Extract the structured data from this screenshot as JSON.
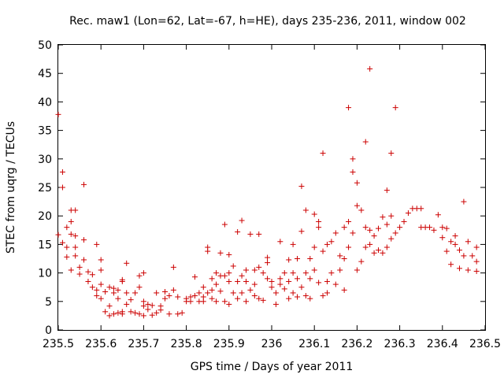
{
  "chart_data": {
    "type": "scatter",
    "title": "Rec. maw1 (Lon=62, Lat=-67, h=HE), days 235-236, 2011, window 002",
    "xlabel": "GPS time / Days of year 2011",
    "ylabel": "STEC from uqrg / TECUs",
    "xlim": [
      235.5,
      236.5
    ],
    "ylim": [
      0,
      50
    ],
    "xticks": [
      "235.5",
      "235.6",
      "235.7",
      "235.8",
      "235.9",
      "236",
      "236.1",
      "236.2",
      "236.3",
      "236.4",
      "236.5"
    ],
    "yticks": [
      "0",
      "5",
      "10",
      "15",
      "20",
      "25",
      "30",
      "35",
      "40",
      "45",
      "50"
    ],
    "grid": false,
    "marker": "plus",
    "color": "#cc0000",
    "points": [
      [
        235.5,
        37.8
      ],
      [
        235.5,
        16.7
      ],
      [
        235.51,
        15.3
      ],
      [
        235.51,
        27.7
      ],
      [
        235.51,
        25
      ],
      [
        235.52,
        18
      ],
      [
        235.52,
        14.5
      ],
      [
        235.52,
        12.8
      ],
      [
        235.53,
        19
      ],
      [
        235.53,
        21
      ],
      [
        235.53,
        16.8
      ],
      [
        235.53,
        10.5
      ],
      [
        235.54,
        21
      ],
      [
        235.54,
        16.5
      ],
      [
        235.54,
        14.5
      ],
      [
        235.54,
        13
      ],
      [
        235.55,
        9.8
      ],
      [
        235.55,
        11
      ],
      [
        235.56,
        25.5
      ],
      [
        235.56,
        15.8
      ],
      [
        235.56,
        12.3
      ],
      [
        235.57,
        10.2
      ],
      [
        235.57,
        8.5
      ],
      [
        235.58,
        9.7
      ],
      [
        235.58,
        7.5
      ],
      [
        235.59,
        7
      ],
      [
        235.59,
        15
      ],
      [
        235.59,
        6
      ],
      [
        235.6,
        8
      ],
      [
        235.6,
        5.5
      ],
      [
        235.6,
        12.3
      ],
      [
        235.6,
        10.5
      ],
      [
        235.61,
        3.2
      ],
      [
        235.61,
        6.7
      ],
      [
        235.62,
        7.5
      ],
      [
        235.62,
        4.2
      ],
      [
        235.62,
        2.5
      ],
      [
        235.63,
        7.3
      ],
      [
        235.63,
        6.5
      ],
      [
        235.63,
        2.8
      ],
      [
        235.64,
        7
      ],
      [
        235.64,
        3
      ],
      [
        235.64,
        5.5
      ],
      [
        235.65,
        8.8
      ],
      [
        235.65,
        8.5
      ],
      [
        235.65,
        3.2
      ],
      [
        235.65,
        2.8
      ],
      [
        235.66,
        6.5
      ],
      [
        235.66,
        4.5
      ],
      [
        235.66,
        11.7
      ],
      [
        235.67,
        3.2
      ],
      [
        235.67,
        5.3
      ],
      [
        235.68,
        6.5
      ],
      [
        235.68,
        3
      ],
      [
        235.69,
        9.5
      ],
      [
        235.69,
        7.5
      ],
      [
        235.69,
        2.8
      ],
      [
        235.7,
        10
      ],
      [
        235.7,
        5
      ],
      [
        235.7,
        4.2
      ],
      [
        235.7,
        2.5
      ],
      [
        235.71,
        4.5
      ],
      [
        235.71,
        3.6
      ],
      [
        235.72,
        4.3
      ],
      [
        235.72,
        2.6
      ],
      [
        235.73,
        6.5
      ],
      [
        235.73,
        3
      ],
      [
        235.74,
        3.5
      ],
      [
        235.74,
        4.2
      ],
      [
        235.75,
        5.5
      ],
      [
        235.75,
        6.7
      ],
      [
        235.76,
        6
      ],
      [
        235.76,
        2.8
      ],
      [
        235.77,
        11
      ],
      [
        235.77,
        7
      ],
      [
        235.78,
        5.8
      ],
      [
        235.78,
        2.8
      ],
      [
        235.79,
        3
      ],
      [
        235.8,
        5.5
      ],
      [
        235.8,
        5
      ],
      [
        235.81,
        5.8
      ],
      [
        235.81,
        5
      ],
      [
        235.82,
        9.3
      ],
      [
        235.82,
        6
      ],
      [
        235.83,
        5
      ],
      [
        235.83,
        6.5
      ],
      [
        235.84,
        7.5
      ],
      [
        235.84,
        5.8
      ],
      [
        235.84,
        5
      ],
      [
        235.85,
        14.5
      ],
      [
        235.85,
        13.8
      ],
      [
        235.85,
        6.5
      ],
      [
        235.86,
        5.5
      ],
      [
        235.86,
        9
      ],
      [
        235.86,
        7
      ],
      [
        235.87,
        10
      ],
      [
        235.87,
        5
      ],
      [
        235.87,
        8
      ],
      [
        235.88,
        13.5
      ],
      [
        235.88,
        9.5
      ],
      [
        235.88,
        6.8
      ],
      [
        235.89,
        18.5
      ],
      [
        235.89,
        9.5
      ],
      [
        235.89,
        5
      ],
      [
        235.9,
        13.2
      ],
      [
        235.9,
        10
      ],
      [
        235.9,
        8.5
      ],
      [
        235.9,
        4.5
      ],
      [
        235.91,
        11.2
      ],
      [
        235.91,
        6.5
      ],
      [
        235.92,
        17.2
      ],
      [
        235.92,
        8.5
      ],
      [
        235.92,
        5.5
      ],
      [
        235.93,
        9.5
      ],
      [
        235.93,
        6.5
      ],
      [
        235.93,
        19.2
      ],
      [
        235.94,
        10.5
      ],
      [
        235.94,
        8.5
      ],
      [
        235.94,
        5
      ],
      [
        235.95,
        16.8
      ],
      [
        235.95,
        7
      ],
      [
        235.96,
        10.5
      ],
      [
        235.96,
        8
      ],
      [
        235.96,
        6
      ],
      [
        235.97,
        16.8
      ],
      [
        235.97,
        11
      ],
      [
        235.97,
        5.5
      ],
      [
        235.98,
        10
      ],
      [
        235.98,
        5.2
      ],
      [
        235.99,
        12.7
      ],
      [
        235.99,
        11.8
      ],
      [
        235.99,
        9
      ],
      [
        236.0,
        8.5
      ],
      [
        236.0,
        7.5
      ],
      [
        236.01,
        6.5
      ],
      [
        236.01,
        4.5
      ],
      [
        236.02,
        9
      ],
      [
        236.02,
        8
      ],
      [
        236.02,
        15.5
      ],
      [
        236.03,
        10
      ],
      [
        236.03,
        7.2
      ],
      [
        236.04,
        12.3
      ],
      [
        236.04,
        8.5
      ],
      [
        236.04,
        5.5
      ],
      [
        236.05,
        10
      ],
      [
        236.05,
        6.5
      ],
      [
        236.05,
        15
      ],
      [
        236.06,
        12.5
      ],
      [
        236.06,
        9
      ],
      [
        236.06,
        5.8
      ],
      [
        236.07,
        25.2
      ],
      [
        236.07,
        17.3
      ],
      [
        236.07,
        7.5
      ],
      [
        236.08,
        10
      ],
      [
        236.08,
        6
      ],
      [
        236.08,
        21
      ],
      [
        236.09,
        12.5
      ],
      [
        236.09,
        9
      ],
      [
        236.09,
        5.5
      ],
      [
        236.1,
        20.3
      ],
      [
        236.1,
        14.5
      ],
      [
        236.1,
        10.5
      ],
      [
        236.11,
        19
      ],
      [
        236.11,
        18
      ],
      [
        236.11,
        8.3
      ],
      [
        236.12,
        13.8
      ],
      [
        236.12,
        6
      ],
      [
        236.12,
        31
      ],
      [
        236.13,
        15
      ],
      [
        236.13,
        8.5
      ],
      [
        236.13,
        6.5
      ],
      [
        236.14,
        15.5
      ],
      [
        236.14,
        10
      ],
      [
        236.15,
        17
      ],
      [
        236.15,
        8
      ],
      [
        236.16,
        13
      ],
      [
        236.16,
        10.5
      ],
      [
        236.17,
        18
      ],
      [
        236.17,
        12.5
      ],
      [
        236.17,
        7
      ],
      [
        236.18,
        39
      ],
      [
        236.18,
        19
      ],
      [
        236.18,
        14.5
      ],
      [
        236.19,
        30
      ],
      [
        236.19,
        27.7
      ],
      [
        236.19,
        17
      ],
      [
        236.2,
        25.8
      ],
      [
        236.2,
        21.8
      ],
      [
        236.2,
        10.5
      ],
      [
        236.21,
        21
      ],
      [
        236.21,
        12
      ],
      [
        236.22,
        33
      ],
      [
        236.22,
        18
      ],
      [
        236.22,
        14.5
      ],
      [
        236.23,
        45.8
      ],
      [
        236.23,
        17.5
      ],
      [
        236.23,
        15
      ],
      [
        236.24,
        16.5
      ],
      [
        236.24,
        13.5
      ],
      [
        236.25,
        17.8
      ],
      [
        236.25,
        14
      ],
      [
        236.26,
        19.8
      ],
      [
        236.26,
        13.5
      ],
      [
        236.27,
        24.5
      ],
      [
        236.27,
        18.5
      ],
      [
        236.27,
        14.5
      ],
      [
        236.28,
        31
      ],
      [
        236.28,
        20
      ],
      [
        236.28,
        16
      ],
      [
        236.29,
        39
      ],
      [
        236.29,
        17
      ],
      [
        236.3,
        18
      ],
      [
        236.31,
        19
      ],
      [
        236.32,
        20.5
      ],
      [
        236.33,
        21.3
      ],
      [
        236.34,
        21.3
      ],
      [
        236.35,
        18
      ],
      [
        236.35,
        21.3
      ],
      [
        236.36,
        18
      ],
      [
        236.37,
        18
      ],
      [
        236.38,
        17.5
      ],
      [
        236.39,
        20.2
      ],
      [
        236.4,
        18
      ],
      [
        236.4,
        16.2
      ],
      [
        236.41,
        17.8
      ],
      [
        236.41,
        13.8
      ],
      [
        236.42,
        15.5
      ],
      [
        236.42,
        11.5
      ],
      [
        236.43,
        16.5
      ],
      [
        236.43,
        15
      ],
      [
        236.44,
        14
      ],
      [
        236.44,
        10.8
      ],
      [
        236.45,
        22.5
      ],
      [
        236.45,
        13
      ],
      [
        236.46,
        15.5
      ],
      [
        236.46,
        10.5
      ],
      [
        236.47,
        13
      ],
      [
        236.48,
        14.5
      ],
      [
        236.48,
        12
      ],
      [
        236.48,
        10.3
      ]
    ]
  }
}
